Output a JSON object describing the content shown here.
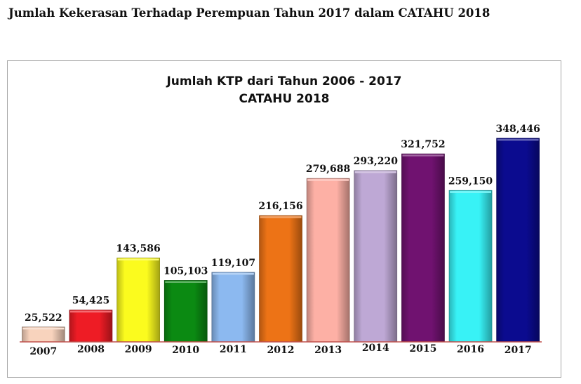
{
  "page": {
    "heading": "Jumlah Kekerasan Terhadap Perempuan Tahun 2017 dalam CATAHU 2018"
  },
  "chart_data": {
    "type": "bar",
    "title": "Jumlah KTP dari Tahun 2006 - 2017",
    "subtitle": "CATAHU 2018",
    "xlabel": "",
    "ylabel": "",
    "ylim": [
      0,
      400000
    ],
    "grid": false,
    "legend": "none",
    "categories": [
      "2007",
      "2008",
      "2009",
      "2010",
      "2011",
      "2012",
      "2013",
      "2014",
      "2015",
      "2016",
      "2017"
    ],
    "values": [
      25522,
      54425,
      143586,
      105103,
      119107,
      216156,
      279688,
      293220,
      321752,
      259150,
      348446
    ],
    "value_labels": [
      "25,522",
      "54,425",
      "143,586",
      "105,103",
      "119,107",
      "216,156",
      "279,688",
      "293,220",
      "321,752",
      "259,150",
      "348,446"
    ],
    "colors": [
      "#f8d3bd",
      "#ee1c25",
      "#fbfb1e",
      "#0b8a12",
      "#8cb9f0",
      "#ed7316",
      "#fdb0a5",
      "#bea8d5",
      "#701270",
      "#38f2f6",
      "#0b0b8f"
    ],
    "baseline_color": "#c0504d"
  }
}
